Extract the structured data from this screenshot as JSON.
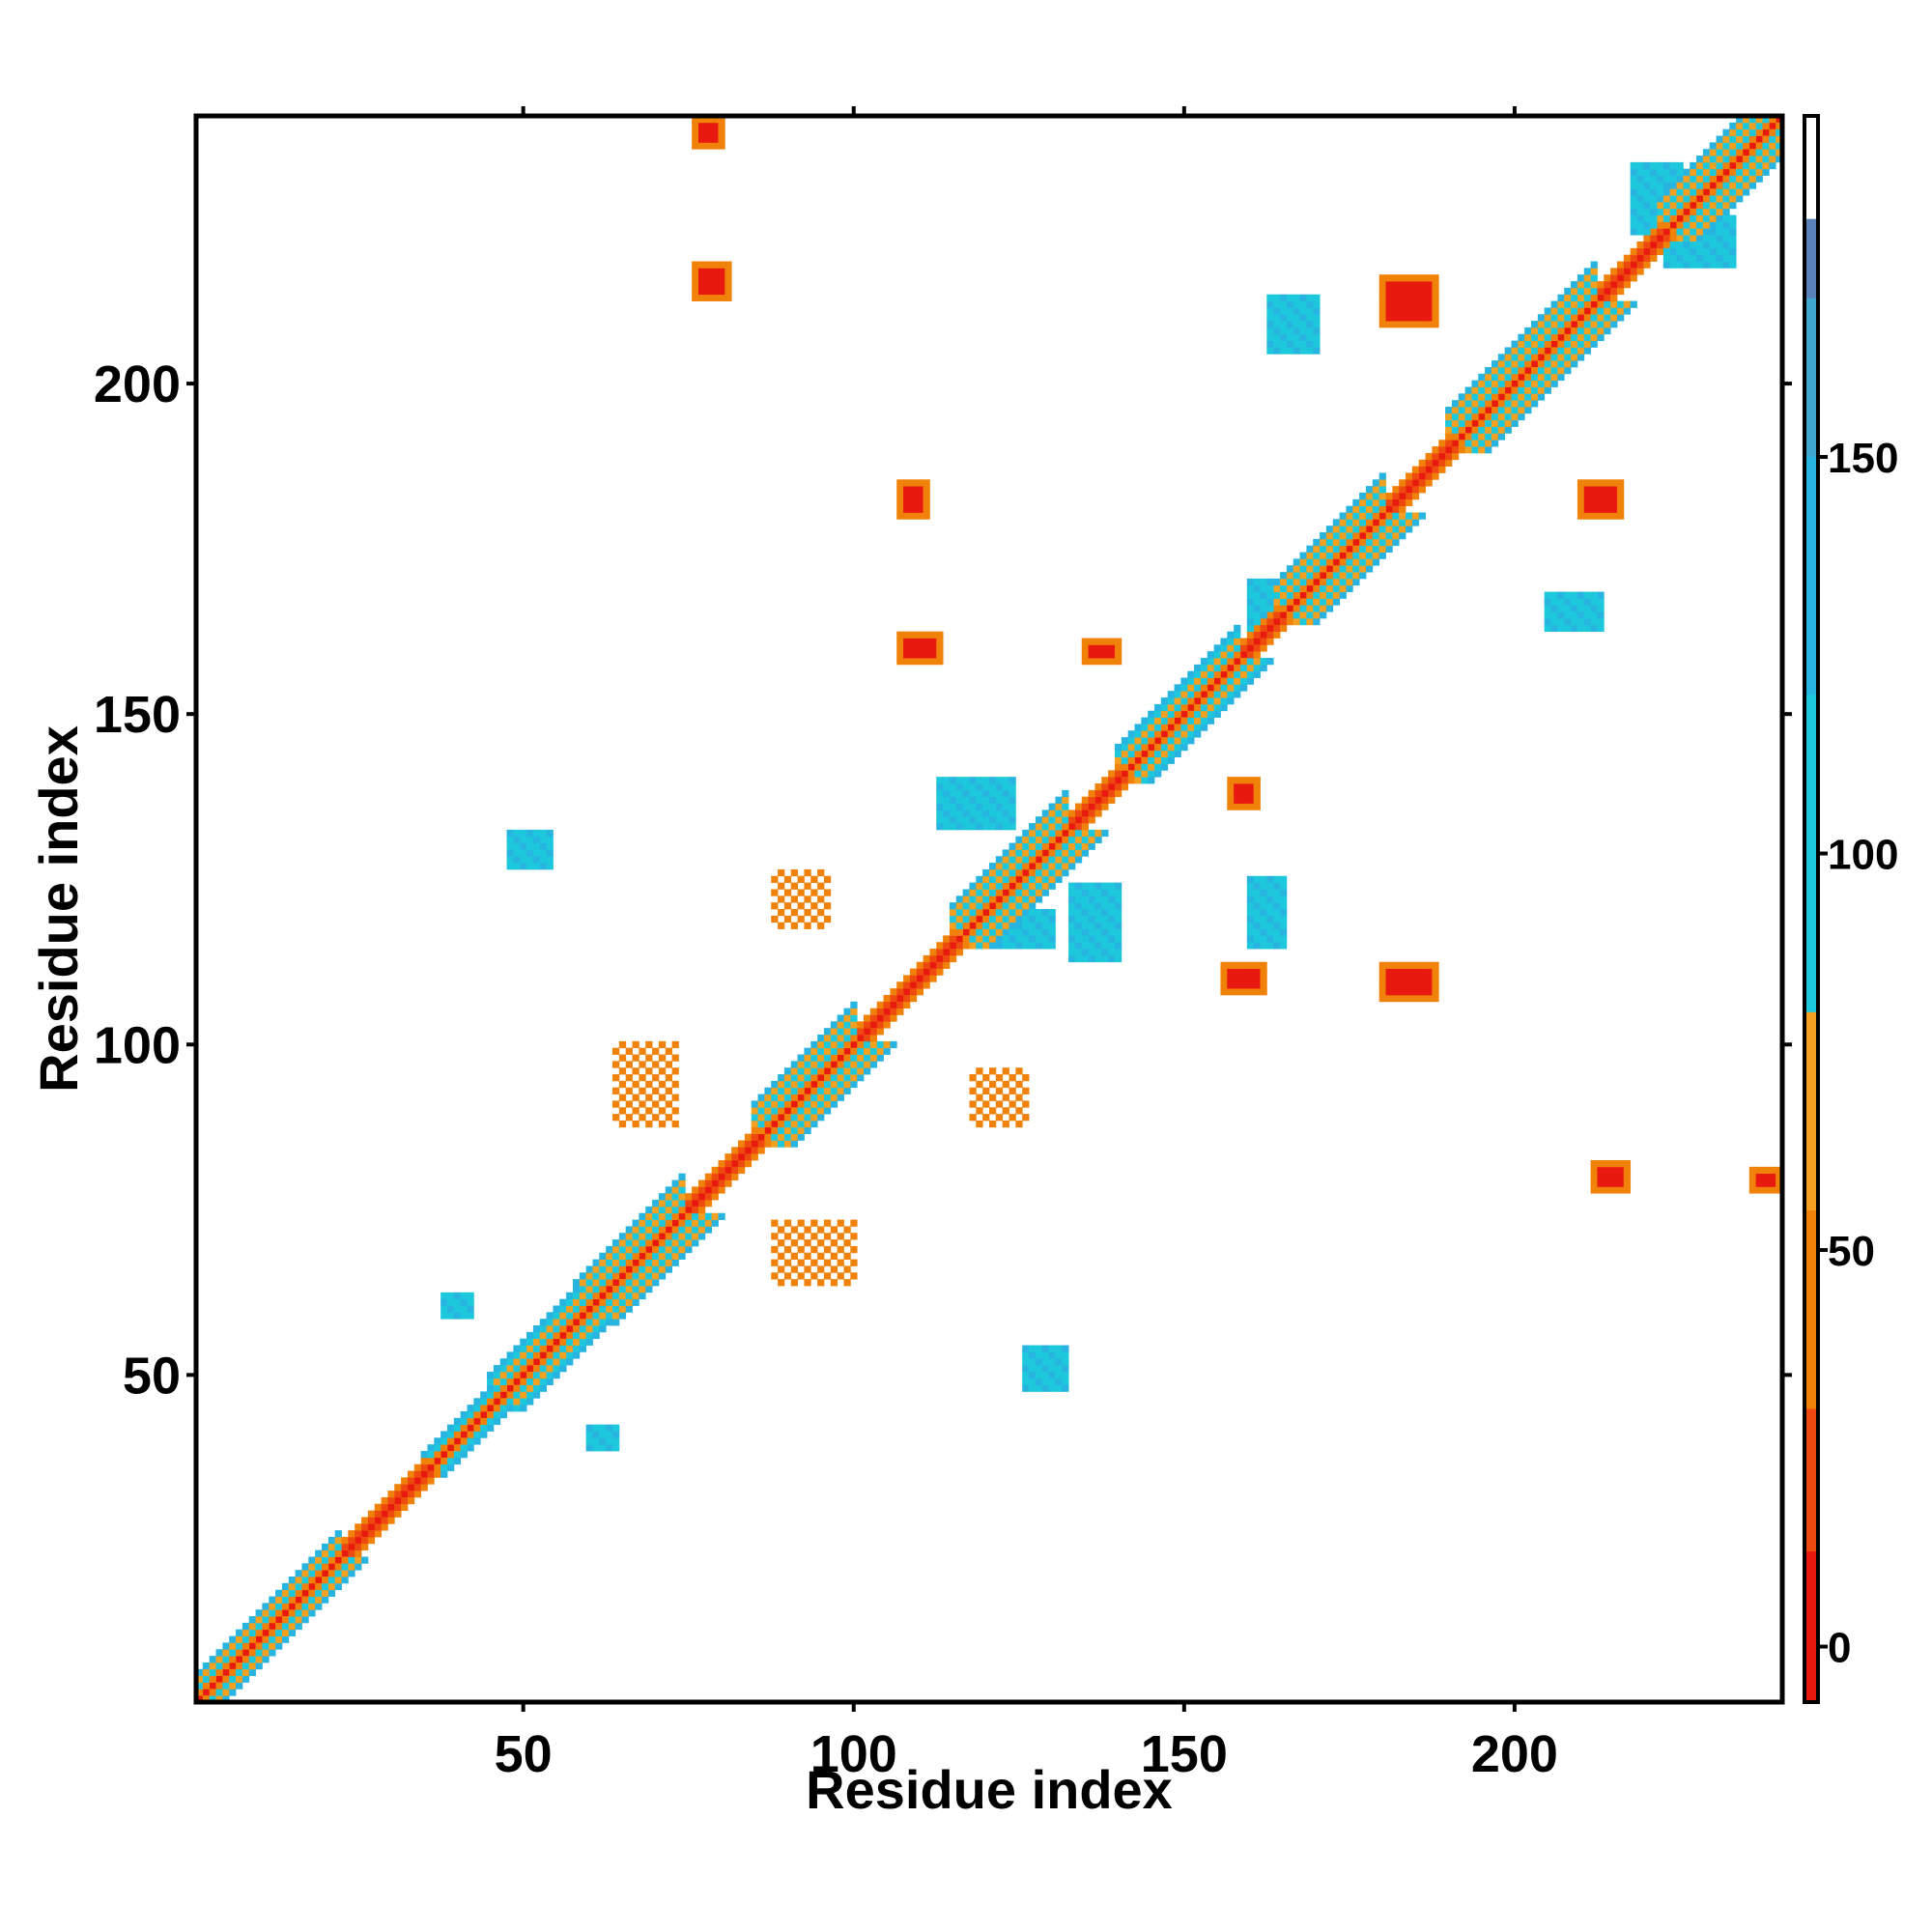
{
  "chart_data": {
    "type": "heatmap",
    "title": "",
    "xlabel": "Residue index",
    "ylabel": "Residue index",
    "xlim": [
      1,
      240
    ],
    "ylim": [
      1,
      240
    ],
    "x_ticks": [
      50,
      100,
      150,
      200
    ],
    "y_ticks": [
      50,
      100,
      150,
      200
    ],
    "colorbar": {
      "ticks": [
        0,
        50,
        100,
        150
      ],
      "range": [
        -7,
        193
      ],
      "bands": [
        {
          "from": -7,
          "to": 30,
          "color": "#e8190f"
        },
        {
          "from": 30,
          "to": 80,
          "color": "#f0820a"
        },
        {
          "from": 80,
          "to": 180,
          "color": "#1ec8dc"
        },
        {
          "from": 180,
          "to": 193,
          "color": "#ffffff"
        }
      ],
      "fine_colors": [
        "#e8190f",
        "#ee4a10",
        "#f0820a",
        "#f4a020",
        "#1ec8dc",
        "#28b4e0",
        "#3fa8cf",
        "#5a80b8"
      ]
    },
    "grid": false,
    "diagonal": {
      "start": 1,
      "end": 240,
      "value": 0
    },
    "regions": [
      {
        "x": [
          1,
          22
        ],
        "y": [
          1,
          22
        ],
        "kind": "helix",
        "width": 4
      },
      {
        "x": [
          22,
          35
        ],
        "y": [
          22,
          35
        ],
        "kind": "coil",
        "width": 2
      },
      {
        "x": [
          35,
          45
        ],
        "y": [
          35,
          45
        ],
        "kind": "helix",
        "width": 3
      },
      {
        "x": [
          45,
          58
        ],
        "y": [
          45,
          58
        ],
        "kind": "helix",
        "width": 5
      },
      {
        "x": [
          58,
          74
        ],
        "y": [
          58,
          74
        ],
        "kind": "helix",
        "width": 6
      },
      {
        "x": [
          74,
          85
        ],
        "y": [
          74,
          85
        ],
        "kind": "coil",
        "width": 2
      },
      {
        "x": [
          85,
          100
        ],
        "y": [
          85,
          100
        ],
        "kind": "helix",
        "width": 6
      },
      {
        "x": [
          100,
          107
        ],
        "y": [
          100,
          107
        ],
        "kind": "coil",
        "width": 2
      },
      {
        "x": [
          107,
          115
        ],
        "y": [
          107,
          115
        ],
        "kind": "coil",
        "width": 2
      },
      {
        "x": [
          115,
          132
        ],
        "y": [
          115,
          132
        ],
        "kind": "helix",
        "width": 6
      },
      {
        "x": [
          132,
          140
        ],
        "y": [
          132,
          140
        ],
        "kind": "coil",
        "width": 2
      },
      {
        "x": [
          140,
          158
        ],
        "y": [
          140,
          158
        ],
        "kind": "helix",
        "width": 5
      },
      {
        "x": [
          158,
          164
        ],
        "y": [
          158,
          164
        ],
        "kind": "coil",
        "width": 2
      },
      {
        "x": [
          164,
          180
        ],
        "y": [
          164,
          180
        ],
        "kind": "helix",
        "width": 6
      },
      {
        "x": [
          180,
          190
        ],
        "y": [
          180,
          190
        ],
        "kind": "coil",
        "width": 2
      },
      {
        "x": [
          190,
          212
        ],
        "y": [
          190,
          212
        ],
        "kind": "helix",
        "width": 6
      },
      {
        "x": [
          212,
          222
        ],
        "y": [
          212,
          222
        ],
        "kind": "coil",
        "width": 2
      },
      {
        "x": [
          222,
          240
        ],
        "y": [
          222,
          240
        ],
        "kind": "helix",
        "width": 6
      }
    ],
    "contact_patches": [
      {
        "x": [
          76,
          80
        ],
        "y": [
          236,
          240
        ],
        "value": 5
      },
      {
        "x": [
          76,
          81
        ],
        "y": [
          213,
          218
        ],
        "value": 5
      },
      {
        "x": [
          107,
          111
        ],
        "y": [
          180,
          185
        ],
        "value": 5
      },
      {
        "x": [
          107,
          113
        ],
        "y": [
          158,
          162
        ],
        "value": 5
      },
      {
        "x": [
          135,
          140
        ],
        "y": [
          158,
          161
        ],
        "value": 5
      },
      {
        "x": [
          157,
          161
        ],
        "y": [
          136,
          140
        ],
        "value": 5
      },
      {
        "x": [
          156,
          162
        ],
        "y": [
          108,
          112
        ],
        "value": 5
      },
      {
        "x": [
          180,
          188
        ],
        "y": [
          107,
          112
        ],
        "value": 5
      },
      {
        "x": [
          180,
          188
        ],
        "y": [
          209,
          216
        ],
        "value": 5
      },
      {
        "x": [
          210,
          216
        ],
        "y": [
          180,
          185
        ],
        "value": 5
      },
      {
        "x": [
          212,
          217
        ],
        "y": [
          78,
          82
        ],
        "value": 5
      },
      {
        "x": [
          236,
          240
        ],
        "y": [
          78,
          81
        ],
        "value": 5
      },
      {
        "x": [
          48,
          54
        ],
        "y": [
          127,
          132
        ],
        "value": 110
      },
      {
        "x": [
          126,
          132
        ],
        "y": [
          48,
          54
        ],
        "value": 110
      },
      {
        "x": [
          38,
          42
        ],
        "y": [
          59,
          62
        ],
        "value": 110
      },
      {
        "x": [
          60,
          64
        ],
        "y": [
          39,
          42
        ],
        "value": 110
      },
      {
        "x": [
          113,
          124
        ],
        "y": [
          133,
          140
        ],
        "value": 110
      },
      {
        "x": [
          133,
          140
        ],
        "y": [
          113,
          124
        ],
        "value": 110
      },
      {
        "x": [
          120,
          130
        ],
        "y": [
          115,
          120
        ],
        "value": 110
      },
      {
        "x": [
          160,
          165
        ],
        "y": [
          115,
          125
        ],
        "value": 110
      },
      {
        "x": [
          88,
          100
        ],
        "y": [
          64,
          73
        ],
        "value": 60
      },
      {
        "x": [
          64,
          73
        ],
        "y": [
          88,
          100
        ],
        "value": 60
      },
      {
        "x": [
          88,
          96
        ],
        "y": [
          118,
          126
        ],
        "value": 60
      },
      {
        "x": [
          118,
          126
        ],
        "y": [
          88,
          96
        ],
        "value": 60
      },
      {
        "x": [
          160,
          165
        ],
        "y": [
          163,
          170
        ],
        "value": 110
      },
      {
        "x": [
          205,
          213
        ],
        "y": [
          163,
          168
        ],
        "value": 110
      },
      {
        "x": [
          163,
          170
        ],
        "y": [
          205,
          213
        ],
        "value": 110
      },
      {
        "x": [
          223,
          233
        ],
        "y": [
          218,
          225
        ],
        "value": 110
      },
      {
        "x": [
          218,
          225
        ],
        "y": [
          223,
          233
        ],
        "value": 110
      }
    ]
  }
}
